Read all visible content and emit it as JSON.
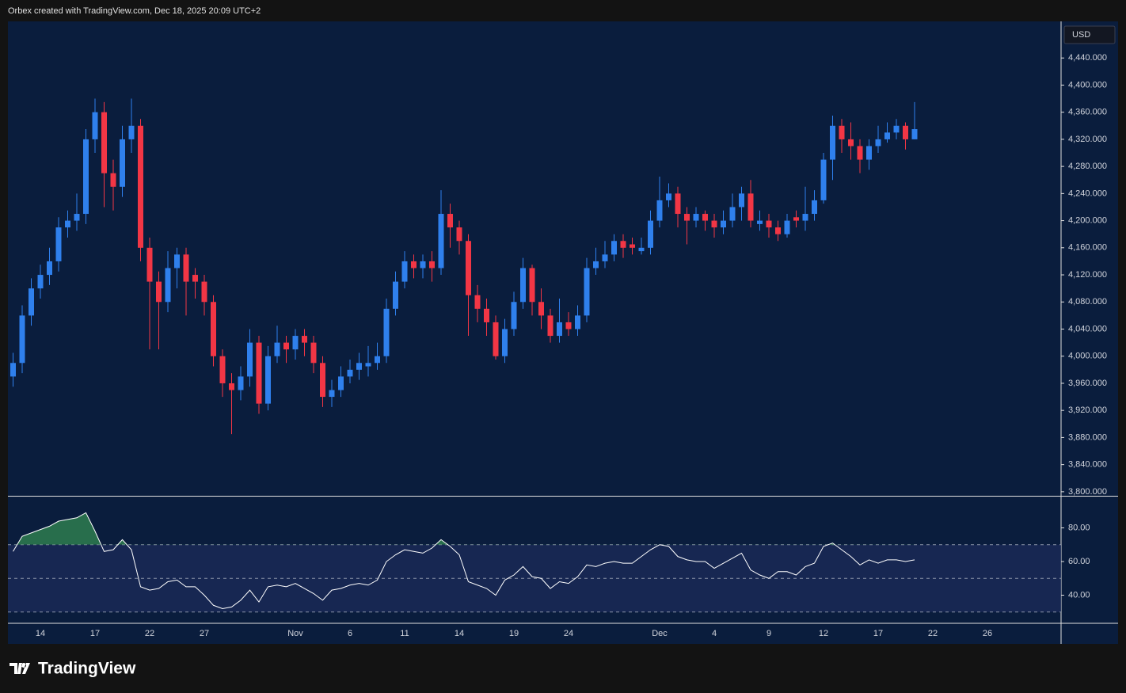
{
  "header": {
    "title": "Orbex created with TradingView.com, Dec 18, 2025 20:09 UTC+2"
  },
  "footer": {
    "logo": "TradingView"
  },
  "chart_data": {
    "type": "candlestick",
    "currency": "USD",
    "up_color": "#2f80ed",
    "down_color": "#f23645",
    "rsi_color": "#ffffff",
    "overbought_color": "#2e7d4f",
    "categories": [
      null,
      null,
      null,
      "14",
      null,
      null,
      null,
      null,
      null,
      "17",
      null,
      null,
      null,
      null,
      null,
      "22",
      null,
      null,
      null,
      null,
      null,
      "27",
      null,
      null,
      null,
      null,
      null,
      null,
      null,
      null,
      null,
      "Nov",
      null,
      null,
      null,
      null,
      null,
      "6",
      null,
      null,
      null,
      null,
      null,
      "11",
      null,
      null,
      null,
      null,
      null,
      "14",
      null,
      null,
      null,
      null,
      null,
      "19",
      null,
      null,
      null,
      null,
      null,
      "24",
      null,
      null,
      null,
      null,
      null,
      null,
      null,
      null,
      null,
      "Dec",
      null,
      null,
      null,
      null,
      null,
      "4",
      null,
      null,
      null,
      null,
      null,
      "9",
      null,
      null,
      null,
      null,
      null,
      "12",
      null,
      null,
      null,
      null,
      null,
      "17",
      null,
      null,
      null,
      null,
      null,
      "22",
      null,
      null,
      null,
      null,
      null,
      "26"
    ],
    "open": [
      3970,
      3990,
      4060,
      4100,
      4120,
      4140,
      4190,
      4200,
      4210,
      4320,
      4360,
      4270,
      4250,
      4320,
      4340,
      4160,
      4110,
      4080,
      4130,
      4150,
      4120,
      4110,
      4080,
      4000,
      3960,
      3950,
      3970,
      4020,
      3930,
      4000,
      4020,
      4010,
      4030,
      4020,
      3990,
      3940,
      3950,
      3970,
      3980,
      3985,
      3990,
      4000,
      4070,
      4110,
      4140,
      4130,
      4140,
      4130,
      4210,
      4190,
      4170,
      4090,
      4070,
      4050,
      4000,
      4040,
      4080,
      4130,
      4080,
      4060,
      4030,
      4050,
      4040,
      4060,
      4130,
      4140,
      4150,
      4170,
      4165,
      4155,
      4160,
      4200,
      4230,
      4240,
      4210,
      4200,
      4210,
      4200,
      4190,
      4200,
      4220,
      4240,
      4195,
      4200,
      4190,
      4180,
      4205,
      4200,
      4210,
      4230,
      4290,
      4340,
      4320,
      4310,
      4290,
      4310,
      4320,
      4330,
      4340,
      4320,
      null,
      null,
      null,
      null,
      null,
      null,
      null,
      null
    ],
    "high": [
      4005,
      4075,
      4115,
      4135,
      4160,
      4205,
      4215,
      4240,
      4335,
      4380,
      4375,
      4290,
      4340,
      4380,
      4350,
      4175,
      4125,
      4155,
      4160,
      4160,
      4130,
      4120,
      4090,
      4010,
      3975,
      3985,
      4040,
      4030,
      4015,
      4045,
      4030,
      4040,
      4040,
      4030,
      4000,
      3965,
      3985,
      3995,
      4005,
      4015,
      4020,
      4085,
      4125,
      4155,
      4150,
      4150,
      4155,
      4245,
      4225,
      4200,
      4180,
      4105,
      4085,
      4060,
      4055,
      4095,
      4145,
      4135,
      4100,
      4070,
      4085,
      4065,
      4075,
      4145,
      4160,
      4170,
      4180,
      4180,
      4175,
      4175,
      4215,
      4265,
      4255,
      4250,
      4220,
      4220,
      4215,
      4210,
      4215,
      4240,
      4250,
      4260,
      4215,
      4210,
      4200,
      4210,
      4215,
      4250,
      4245,
      4300,
      4355,
      4350,
      4345,
      4320,
      4320,
      4340,
      4345,
      4350,
      4345,
      4375,
      null,
      null,
      null,
      null,
      null,
      null,
      null,
      null
    ],
    "low": [
      3955,
      3975,
      4045,
      4085,
      4105,
      4125,
      4175,
      4185,
      4195,
      4300,
      4220,
      4215,
      4235,
      4300,
      4140,
      4010,
      4010,
      4065,
      4100,
      4060,
      4085,
      4060,
      3985,
      3940,
      3885,
      3935,
      3955,
      3915,
      3920,
      3990,
      3990,
      3995,
      4000,
      3975,
      3925,
      3925,
      3940,
      3960,
      3965,
      3970,
      3980,
      3990,
      4060,
      4100,
      4115,
      4115,
      4110,
      4120,
      4160,
      4150,
      4030,
      4050,
      4030,
      3995,
      3990,
      4030,
      4070,
      4060,
      4040,
      4020,
      4020,
      4030,
      4030,
      4050,
      4120,
      4130,
      4140,
      4145,
      4150,
      4150,
      4150,
      4190,
      4220,
      4190,
      4165,
      4190,
      4185,
      4175,
      4180,
      4190,
      4200,
      4190,
      4185,
      4175,
      4170,
      4175,
      4190,
      4185,
      4200,
      4225,
      4260,
      4300,
      4290,
      4270,
      4275,
      4300,
      4315,
      4320,
      4305,
      4320,
      null,
      null,
      null,
      null,
      null,
      null,
      null,
      null
    ],
    "close": [
      3990,
      4060,
      4100,
      4120,
      4140,
      4190,
      4200,
      4210,
      4320,
      4360,
      4270,
      4250,
      4320,
      4340,
      4160,
      4110,
      4080,
      4130,
      4150,
      4110,
      4110,
      4080,
      4000,
      3960,
      3950,
      3970,
      4020,
      3930,
      4000,
      4020,
      4010,
      4030,
      4020,
      3990,
      3940,
      3950,
      3970,
      3980,
      3990,
      3990,
      4000,
      4070,
      4110,
      4140,
      4130,
      4140,
      4130,
      4210,
      4190,
      4170,
      4090,
      4070,
      4050,
      4000,
      4040,
      4080,
      4130,
      4080,
      4060,
      4030,
      4050,
      4040,
      4060,
      4130,
      4140,
      4150,
      4170,
      4160,
      4160,
      4160,
      4200,
      4230,
      4240,
      4210,
      4200,
      4210,
      4200,
      4190,
      4200,
      4220,
      4240,
      4200,
      4200,
      4190,
      4180,
      4200,
      4200,
      4210,
      4230,
      4290,
      4340,
      4320,
      4310,
      4290,
      4310,
      4320,
      4330,
      4340,
      4320,
      4335,
      null,
      null,
      null,
      null,
      null,
      null,
      null,
      null
    ],
    "rsi": [
      66,
      75,
      77,
      79,
      81,
      84,
      85,
      86,
      89,
      78,
      66,
      67,
      73,
      67,
      45,
      43,
      44,
      48,
      49,
      45,
      45,
      40,
      34,
      32,
      33,
      37,
      43,
      36,
      45,
      46,
      45,
      47,
      44,
      41,
      37,
      43,
      44,
      46,
      47,
      46,
      49,
      60,
      64,
      67,
      66,
      65,
      68,
      73,
      69,
      64,
      48,
      46,
      44,
      40,
      49,
      52,
      57,
      51,
      50,
      44,
      48,
      47,
      51,
      58,
      57,
      59,
      60,
      59,
      59,
      63,
      67,
      70,
      69,
      63,
      61,
      60,
      60,
      56,
      59,
      62,
      65,
      55,
      52,
      50,
      54,
      54,
      52,
      57,
      59,
      69,
      71,
      67,
      63,
      58,
      61,
      59,
      61,
      61,
      60,
      61,
      null,
      null,
      null,
      null,
      null,
      null,
      null,
      null
    ],
    "rsi_levels": [
      70,
      50,
      30
    ],
    "ylim": [
      3794,
      4494
    ],
    "yticks": [
      {
        "value": 3800,
        "label": "3,800.000"
      },
      {
        "value": 3840,
        "label": "3,840.000"
      },
      {
        "value": 3880,
        "label": "3,880.000"
      },
      {
        "value": 3920,
        "label": "3,920.000"
      },
      {
        "value": 3960,
        "label": "3,960.000"
      },
      {
        "value": 4000,
        "label": "4,000.000"
      },
      {
        "value": 4040,
        "label": "4,040.000"
      },
      {
        "value": 4080,
        "label": "4,080.000"
      },
      {
        "value": 4120,
        "label": "4,120.000"
      },
      {
        "value": 4160,
        "label": "4,160.000"
      },
      {
        "value": 4200,
        "label": "4,200.000"
      },
      {
        "value": 4240,
        "label": "4,240.000"
      },
      {
        "value": 4280,
        "label": "4,280.000"
      },
      {
        "value": 4320,
        "label": "4,320.000"
      },
      {
        "value": 4360,
        "label": "4,360.000"
      },
      {
        "value": 4400,
        "label": "4,400.000"
      },
      {
        "value": 4440,
        "label": "4,440.000"
      }
    ],
    "y2lim": [
      23.3,
      98.6
    ],
    "y2ticks": [
      {
        "value": 40,
        "label": "40.00"
      },
      {
        "value": 60,
        "label": "60.00"
      },
      {
        "value": 80,
        "label": "80.00"
      }
    ]
  }
}
